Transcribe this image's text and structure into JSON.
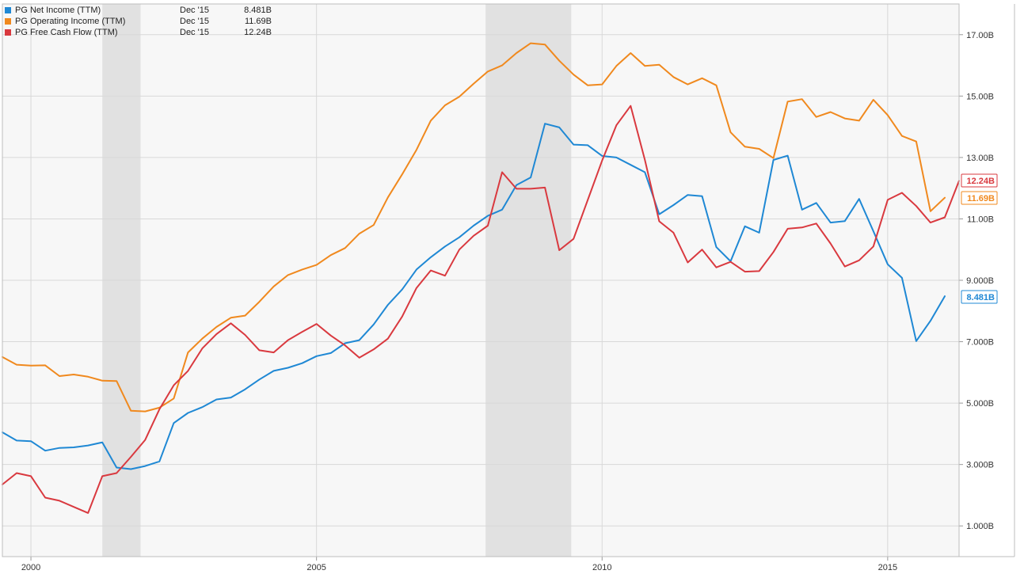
{
  "chart_data": {
    "type": "line",
    "title": "",
    "xlabel": "",
    "ylabel": "",
    "grid": true,
    "legend_position": "top-left",
    "xlim": [
      1999.5,
      2016.25
    ],
    "ylim": [
      0,
      18000000000
    ],
    "x_ticks": [
      {
        "value": 2000,
        "label": "2000"
      },
      {
        "value": 2005,
        "label": "2005"
      },
      {
        "value": 2010,
        "label": "2010"
      },
      {
        "value": 2015,
        "label": "2015"
      }
    ],
    "y_ticks": [
      {
        "value": 1000000000,
        "label": "1.000B"
      },
      {
        "value": 3000000000,
        "label": "3.000B"
      },
      {
        "value": 5000000000,
        "label": "5.000B"
      },
      {
        "value": 7000000000,
        "label": "7.000B"
      },
      {
        "value": 9000000000,
        "label": "9.000B"
      },
      {
        "value": 11000000000,
        "label": "11.00B"
      },
      {
        "value": 13000000000,
        "label": "13.00B"
      },
      {
        "value": 15000000000,
        "label": "15.00B"
      },
      {
        "value": 17000000000,
        "label": "17.00B"
      }
    ],
    "recessions": [
      [
        2001.25,
        2001.92
      ],
      [
        2007.96,
        2009.46
      ]
    ],
    "series": [
      {
        "name": "PG Net Income (TTM)",
        "color": "#1f88d4",
        "legend_date": "Dec '15",
        "legend_value": "8.481B",
        "badge": "8.481B",
        "points": [
          [
            1999.5,
            4.05
          ],
          [
            1999.75,
            3.78
          ],
          [
            2000.0,
            3.76
          ],
          [
            2000.25,
            3.45
          ],
          [
            2000.5,
            3.54
          ],
          [
            2000.75,
            3.56
          ],
          [
            2001.0,
            3.62
          ],
          [
            2001.25,
            3.72
          ],
          [
            2001.5,
            2.9
          ],
          [
            2001.75,
            2.85
          ],
          [
            2002.0,
            2.95
          ],
          [
            2002.25,
            3.1
          ],
          [
            2002.5,
            4.35
          ],
          [
            2002.75,
            4.68
          ],
          [
            2003.0,
            4.87
          ],
          [
            2003.25,
            5.12
          ],
          [
            2003.5,
            5.18
          ],
          [
            2003.75,
            5.45
          ],
          [
            2004.0,
            5.77
          ],
          [
            2004.25,
            6.05
          ],
          [
            2004.5,
            6.15
          ],
          [
            2004.75,
            6.3
          ],
          [
            2005.0,
            6.53
          ],
          [
            2005.25,
            6.63
          ],
          [
            2005.5,
            6.95
          ],
          [
            2005.75,
            7.05
          ],
          [
            2006.0,
            7.56
          ],
          [
            2006.25,
            8.2
          ],
          [
            2006.5,
            8.7
          ],
          [
            2006.75,
            9.35
          ],
          [
            2007.0,
            9.75
          ],
          [
            2007.25,
            10.1
          ],
          [
            2007.5,
            10.4
          ],
          [
            2007.75,
            10.78
          ],
          [
            2008.0,
            11.1
          ],
          [
            2008.25,
            11.3
          ],
          [
            2008.5,
            12.1
          ],
          [
            2008.75,
            12.35
          ],
          [
            2009.0,
            14.1
          ],
          [
            2009.25,
            13.98
          ],
          [
            2009.5,
            13.42
          ],
          [
            2009.75,
            13.4
          ],
          [
            2010.0,
            13.05
          ],
          [
            2010.25,
            13.0
          ],
          [
            2010.5,
            12.76
          ],
          [
            2010.75,
            12.52
          ],
          [
            2011.0,
            11.15
          ],
          [
            2011.25,
            11.45
          ],
          [
            2011.5,
            11.78
          ],
          [
            2011.75,
            11.74
          ],
          [
            2012.0,
            10.08
          ],
          [
            2012.25,
            9.62
          ],
          [
            2012.5,
            10.76
          ],
          [
            2012.75,
            10.55
          ],
          [
            2013.0,
            12.92
          ],
          [
            2013.25,
            13.06
          ],
          [
            2013.5,
            11.3
          ],
          [
            2013.75,
            11.52
          ],
          [
            2014.0,
            10.88
          ],
          [
            2014.25,
            10.93
          ],
          [
            2014.5,
            11.65
          ],
          [
            2014.75,
            10.6
          ],
          [
            2015.0,
            9.52
          ],
          [
            2015.25,
            9.08
          ],
          [
            2015.5,
            7.02
          ],
          [
            2015.75,
            7.68
          ],
          [
            2016.0,
            8.481
          ]
        ]
      },
      {
        "name": "PG Operating Income (TTM)",
        "color": "#f0891e",
        "legend_date": "Dec '15",
        "legend_value": "11.69B",
        "badge": "11.69B",
        "points": [
          [
            1999.5,
            6.5
          ],
          [
            1999.75,
            6.25
          ],
          [
            2000.0,
            6.22
          ],
          [
            2000.25,
            6.23
          ],
          [
            2000.5,
            5.88
          ],
          [
            2000.75,
            5.93
          ],
          [
            2001.0,
            5.86
          ],
          [
            2001.25,
            5.73
          ],
          [
            2001.5,
            5.72
          ],
          [
            2001.75,
            4.75
          ],
          [
            2002.0,
            4.73
          ],
          [
            2002.25,
            4.85
          ],
          [
            2002.5,
            5.15
          ],
          [
            2002.75,
            6.65
          ],
          [
            2003.0,
            7.1
          ],
          [
            2003.25,
            7.48
          ],
          [
            2003.5,
            7.78
          ],
          [
            2003.75,
            7.85
          ],
          [
            2004.0,
            8.3
          ],
          [
            2004.25,
            8.8
          ],
          [
            2004.5,
            9.17
          ],
          [
            2004.75,
            9.35
          ],
          [
            2005.0,
            9.5
          ],
          [
            2005.25,
            9.82
          ],
          [
            2005.5,
            10.05
          ],
          [
            2005.75,
            10.52
          ],
          [
            2006.0,
            10.8
          ],
          [
            2006.25,
            11.7
          ],
          [
            2006.5,
            12.45
          ],
          [
            2006.75,
            13.25
          ],
          [
            2007.0,
            14.2
          ],
          [
            2007.25,
            14.7
          ],
          [
            2007.5,
            14.98
          ],
          [
            2007.75,
            15.4
          ],
          [
            2008.0,
            15.8
          ],
          [
            2008.25,
            16.0
          ],
          [
            2008.5,
            16.4
          ],
          [
            2008.75,
            16.72
          ],
          [
            2009.0,
            16.68
          ],
          [
            2009.25,
            16.15
          ],
          [
            2009.5,
            15.7
          ],
          [
            2009.75,
            15.35
          ],
          [
            2010.0,
            15.38
          ],
          [
            2010.25,
            15.98
          ],
          [
            2010.5,
            16.4
          ],
          [
            2010.75,
            15.98
          ],
          [
            2011.0,
            16.02
          ],
          [
            2011.25,
            15.62
          ],
          [
            2011.5,
            15.38
          ],
          [
            2011.75,
            15.58
          ],
          [
            2012.0,
            15.35
          ],
          [
            2012.25,
            13.82
          ],
          [
            2012.5,
            13.35
          ],
          [
            2012.75,
            13.28
          ],
          [
            2013.0,
            12.98
          ],
          [
            2013.25,
            14.82
          ],
          [
            2013.5,
            14.9
          ],
          [
            2013.75,
            14.32
          ],
          [
            2014.0,
            14.48
          ],
          [
            2014.25,
            14.27
          ],
          [
            2014.5,
            14.2
          ],
          [
            2014.75,
            14.88
          ],
          [
            2015.0,
            14.38
          ],
          [
            2015.25,
            13.7
          ],
          [
            2015.5,
            13.52
          ],
          [
            2015.75,
            11.25
          ],
          [
            2016.0,
            11.69
          ]
        ]
      },
      {
        "name": "PG Free Cash Flow (TTM)",
        "color": "#d9393f",
        "legend_date": "Dec '15",
        "legend_value": "12.24B",
        "badge": "12.24B",
        "points": [
          [
            1999.5,
            2.35
          ],
          [
            1999.75,
            2.72
          ],
          [
            2000.0,
            2.62
          ],
          [
            2000.25,
            1.92
          ],
          [
            2000.5,
            1.82
          ],
          [
            2000.75,
            1.62
          ],
          [
            2001.0,
            1.42
          ],
          [
            2001.25,
            2.62
          ],
          [
            2001.5,
            2.72
          ],
          [
            2001.75,
            3.25
          ],
          [
            2002.0,
            3.8
          ],
          [
            2002.25,
            4.8
          ],
          [
            2002.5,
            5.58
          ],
          [
            2002.75,
            6.05
          ],
          [
            2003.0,
            6.78
          ],
          [
            2003.25,
            7.25
          ],
          [
            2003.5,
            7.6
          ],
          [
            2003.75,
            7.22
          ],
          [
            2004.0,
            6.72
          ],
          [
            2004.25,
            6.65
          ],
          [
            2004.5,
            7.05
          ],
          [
            2004.75,
            7.32
          ],
          [
            2005.0,
            7.58
          ],
          [
            2005.25,
            7.2
          ],
          [
            2005.5,
            6.88
          ],
          [
            2005.75,
            6.48
          ],
          [
            2006.0,
            6.75
          ],
          [
            2006.25,
            7.1
          ],
          [
            2006.5,
            7.82
          ],
          [
            2006.75,
            8.75
          ],
          [
            2007.0,
            9.32
          ],
          [
            2007.25,
            9.15
          ],
          [
            2007.5,
            10.0
          ],
          [
            2007.75,
            10.45
          ],
          [
            2008.0,
            10.78
          ],
          [
            2008.25,
            12.52
          ],
          [
            2008.5,
            11.98
          ],
          [
            2008.75,
            11.98
          ],
          [
            2009.0,
            12.02
          ],
          [
            2009.25,
            9.98
          ],
          [
            2009.5,
            10.35
          ],
          [
            2009.75,
            11.62
          ],
          [
            2010.0,
            12.9
          ],
          [
            2010.25,
            14.05
          ],
          [
            2010.5,
            14.68
          ],
          [
            2010.75,
            12.92
          ],
          [
            2011.0,
            10.92
          ],
          [
            2011.25,
            10.55
          ],
          [
            2011.5,
            9.58
          ],
          [
            2011.75,
            10.0
          ],
          [
            2012.0,
            9.42
          ],
          [
            2012.25,
            9.6
          ],
          [
            2012.5,
            9.28
          ],
          [
            2012.75,
            9.3
          ],
          [
            2013.0,
            9.92
          ],
          [
            2013.25,
            10.68
          ],
          [
            2013.5,
            10.72
          ],
          [
            2013.75,
            10.85
          ],
          [
            2014.0,
            10.2
          ],
          [
            2014.25,
            9.45
          ],
          [
            2014.5,
            9.65
          ],
          [
            2014.75,
            10.1
          ],
          [
            2015.0,
            11.62
          ],
          [
            2015.25,
            11.85
          ],
          [
            2015.5,
            11.42
          ],
          [
            2015.75,
            10.88
          ],
          [
            2016.0,
            11.05
          ],
          [
            2016.25,
            12.24
          ]
        ]
      }
    ]
  }
}
